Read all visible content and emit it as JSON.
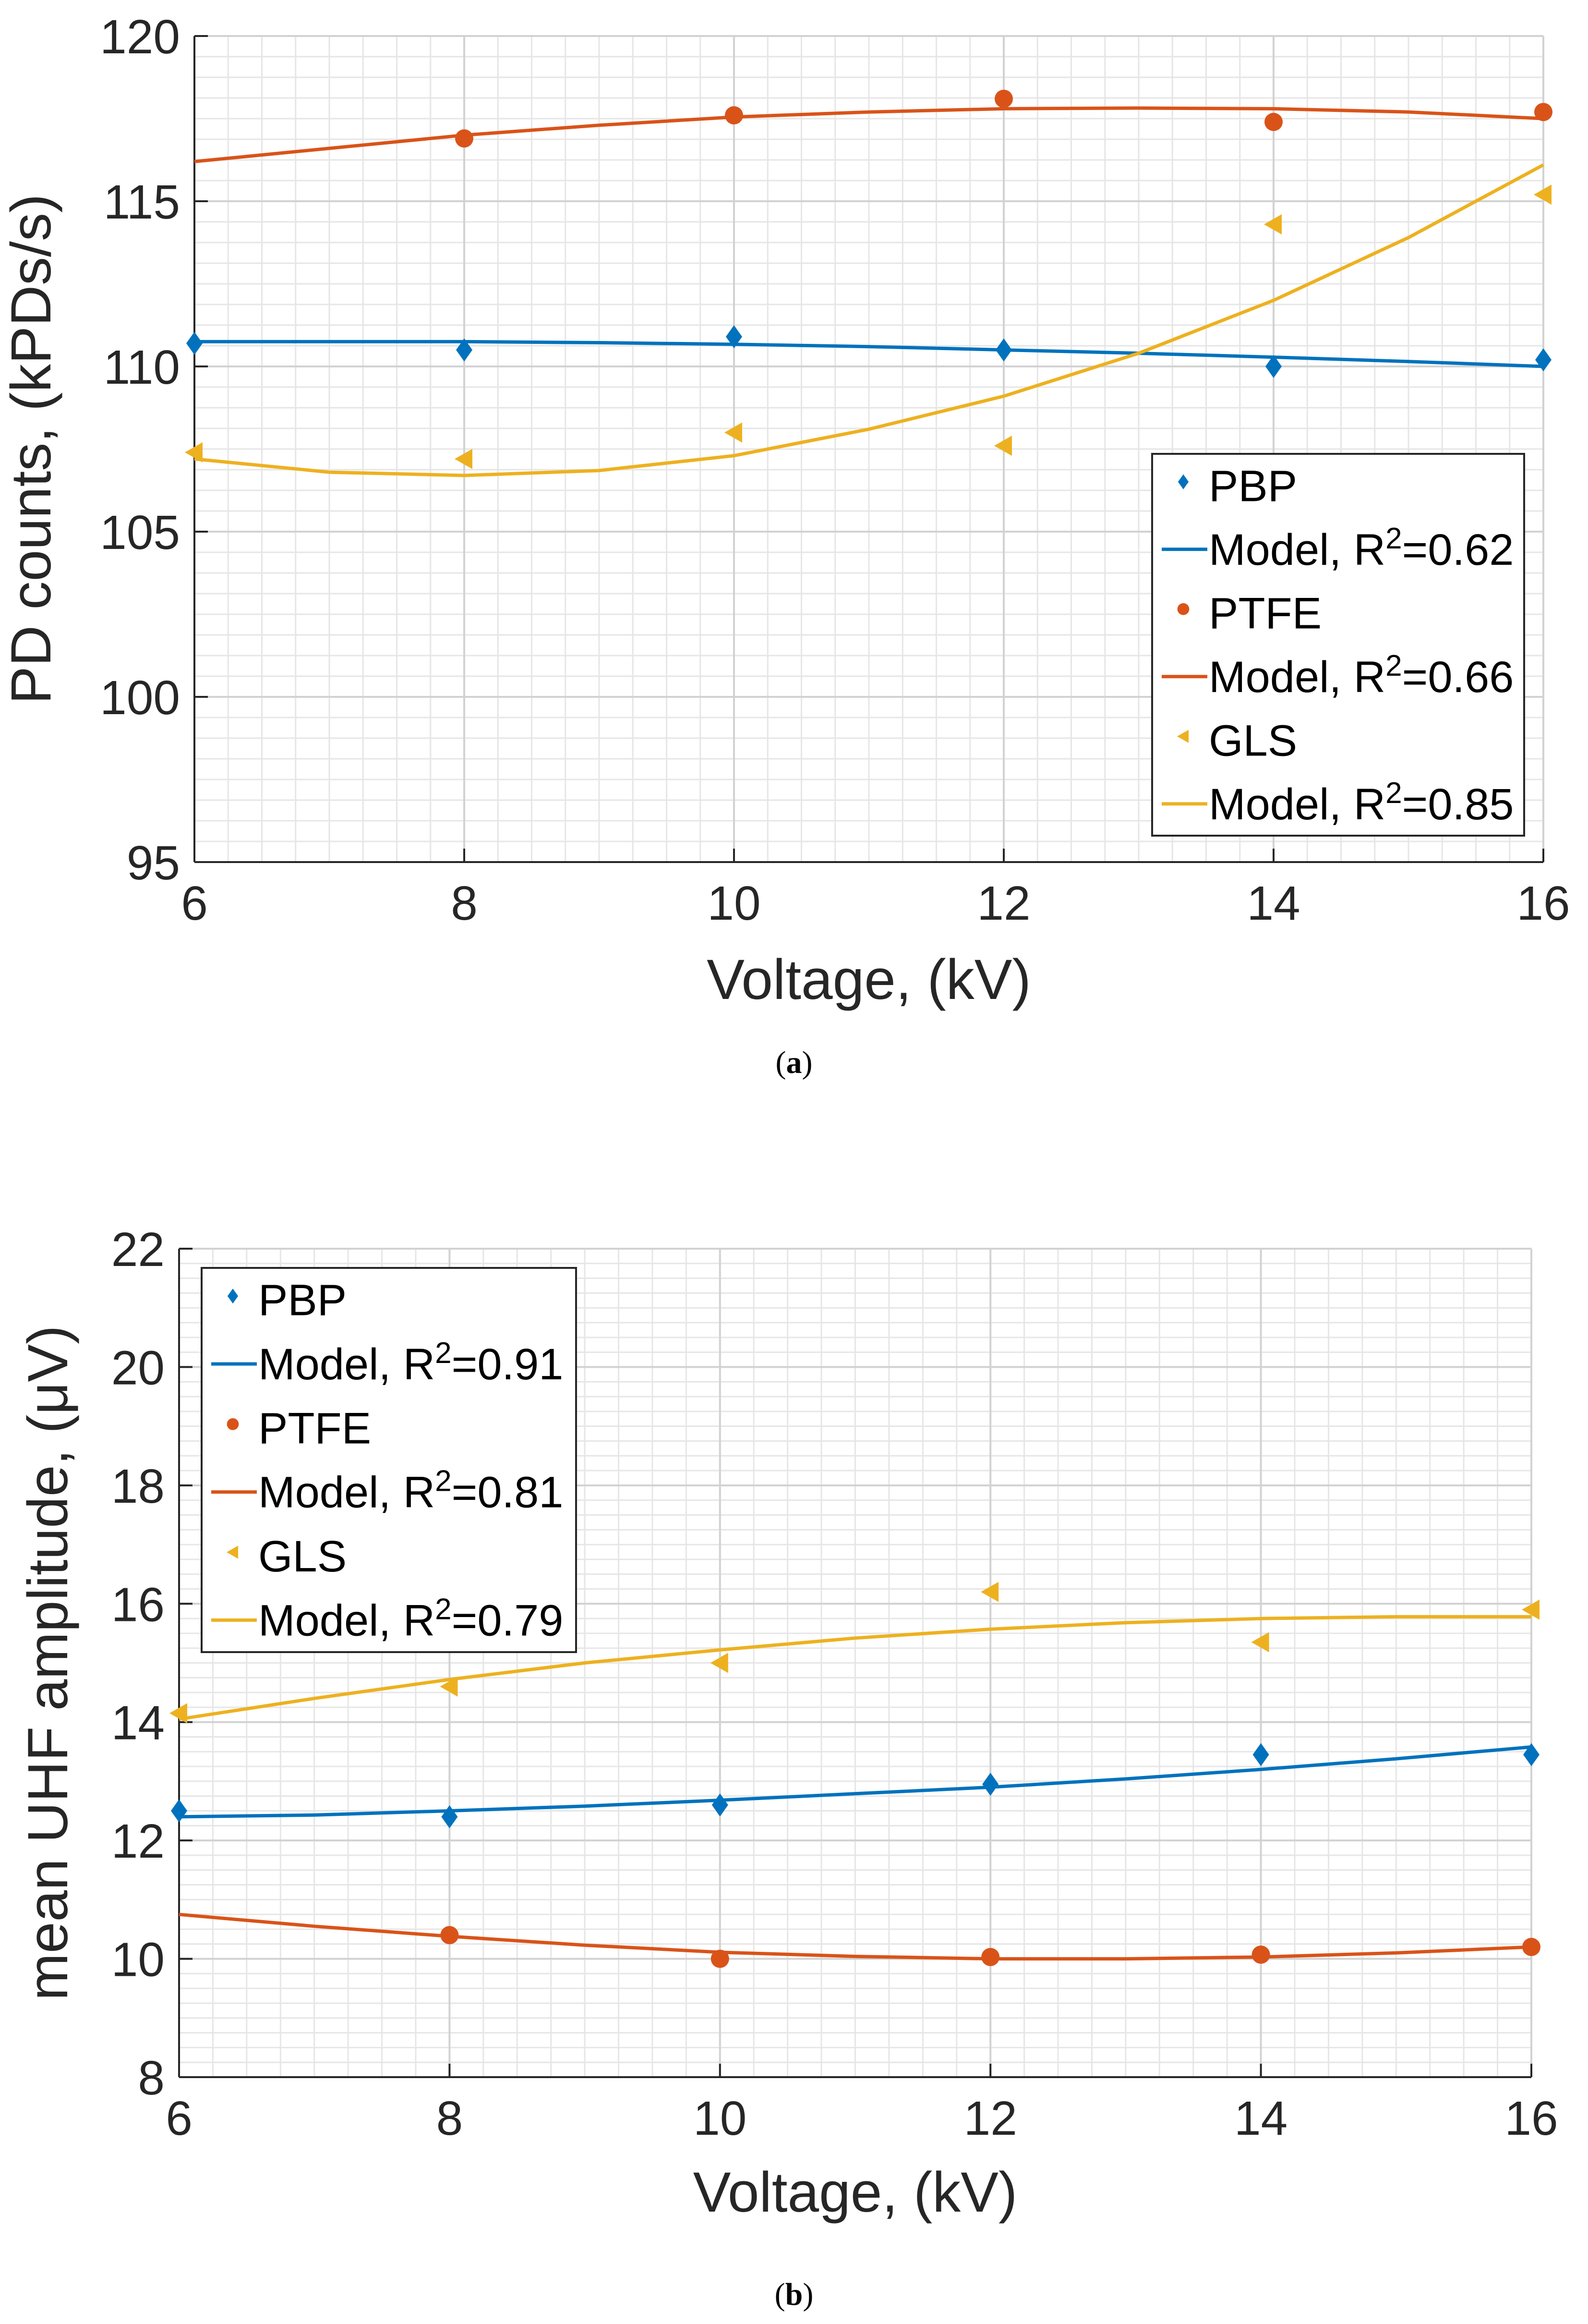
{
  "chart_data": [
    {
      "type": "scatter",
      "panel": "a",
      "caption_letter": "a",
      "title": "",
      "xlabel": "Voltage, (kV)",
      "ylabel": "PD counts, (kPDs/s)",
      "xlim": [
        6,
        16
      ],
      "ylim": [
        95,
        120
      ],
      "xticks": [
        6,
        8,
        10,
        12,
        14,
        16
      ],
      "yticks": [
        95,
        100,
        105,
        110,
        115,
        120
      ],
      "grid": "minor",
      "legend_position": "center-right",
      "series": [
        {
          "name": "PBP",
          "kind": "points",
          "marker": "diamond",
          "color": "#0072BD",
          "x": [
            6,
            8,
            10,
            12,
            14,
            16
          ],
          "y": [
            110.7,
            110.5,
            110.9,
            110.5,
            110.0,
            110.2
          ]
        },
        {
          "name": "Model",
          "r2": "0.62",
          "kind": "curve",
          "color": "#0072BD",
          "x": [
            6,
            7,
            8,
            9,
            10,
            11,
            12,
            13,
            14,
            15,
            16
          ],
          "y": [
            110.75,
            110.75,
            110.75,
            110.72,
            110.67,
            110.6,
            110.5,
            110.4,
            110.28,
            110.15,
            110.0
          ]
        },
        {
          "name": "PTFE",
          "kind": "points",
          "marker": "circle",
          "color": "#D95319",
          "x": [
            8,
            10,
            12,
            14,
            16
          ],
          "y": [
            116.9,
            117.6,
            118.1,
            117.4,
            117.7
          ]
        },
        {
          "name": "Model",
          "r2": "0.66",
          "kind": "curve",
          "color": "#D95319",
          "x": [
            6,
            7,
            8,
            9,
            10,
            11,
            12,
            13,
            14,
            15,
            16
          ],
          "y": [
            116.2,
            116.6,
            117.0,
            117.3,
            117.55,
            117.7,
            117.8,
            117.82,
            117.8,
            117.7,
            117.5
          ]
        },
        {
          "name": "GLS",
          "kind": "points",
          "marker": "triangle-left",
          "color": "#EDB120",
          "x": [
            6,
            8,
            10,
            12,
            14,
            16
          ],
          "y": [
            107.4,
            107.2,
            108.0,
            107.6,
            114.3,
            115.2
          ]
        },
        {
          "name": "Model",
          "r2": "0.85",
          "kind": "curve",
          "color": "#EDB120",
          "x": [
            6,
            7,
            8,
            9,
            10,
            11,
            12,
            13,
            14,
            15,
            16
          ],
          "y": [
            107.2,
            106.8,
            106.7,
            106.85,
            107.3,
            108.1,
            109.1,
            110.4,
            112.0,
            113.9,
            116.1
          ]
        }
      ]
    },
    {
      "type": "scatter",
      "panel": "b",
      "caption_letter": "b",
      "title": "",
      "xlabel": "Voltage, (kV)",
      "ylabel": "mean UHF amplitude, (μV)",
      "xlim": [
        6,
        16
      ],
      "ylim": [
        8,
        22
      ],
      "xticks": [
        6,
        8,
        10,
        12,
        14,
        16
      ],
      "yticks": [
        8,
        10,
        12,
        14,
        16,
        18,
        20,
        22
      ],
      "grid": "minor",
      "legend_position": "top-left",
      "series": [
        {
          "name": "PBP",
          "kind": "points",
          "marker": "diamond",
          "color": "#0072BD",
          "x": [
            6,
            8,
            10,
            12,
            14,
            16
          ],
          "y": [
            12.5,
            12.4,
            12.6,
            12.95,
            13.45,
            13.45
          ]
        },
        {
          "name": "Model",
          "r2": "0.91",
          "kind": "curve",
          "color": "#0072BD",
          "x": [
            6,
            7,
            8,
            9,
            10,
            11,
            12,
            13,
            14,
            15,
            16
          ],
          "y": [
            12.4,
            12.43,
            12.5,
            12.58,
            12.68,
            12.79,
            12.9,
            13.04,
            13.2,
            13.38,
            13.58
          ]
        },
        {
          "name": "PTFE",
          "kind": "points",
          "marker": "circle",
          "color": "#D95319",
          "x": [
            8,
            10,
            12,
            14,
            16
          ],
          "y": [
            10.4,
            10.0,
            10.03,
            10.07,
            10.2
          ]
        },
        {
          "name": "Model",
          "r2": "0.81",
          "kind": "curve",
          "color": "#D95319",
          "x": [
            6,
            7,
            8,
            9,
            10,
            11,
            12,
            13,
            14,
            15,
            16
          ],
          "y": [
            10.75,
            10.55,
            10.38,
            10.23,
            10.11,
            10.04,
            10.0,
            10.0,
            10.03,
            10.1,
            10.2
          ]
        },
        {
          "name": "GLS",
          "kind": "points",
          "marker": "triangle-left",
          "color": "#EDB120",
          "x": [
            6,
            8,
            10,
            12,
            14,
            16
          ],
          "y": [
            14.15,
            14.6,
            15.0,
            16.2,
            15.35,
            15.9
          ]
        },
        {
          "name": "Model",
          "r2": "0.79",
          "kind": "curve",
          "color": "#EDB120",
          "x": [
            6,
            7,
            8,
            9,
            10,
            11,
            12,
            13,
            14,
            15,
            16
          ],
          "y": [
            14.05,
            14.4,
            14.72,
            15.0,
            15.22,
            15.42,
            15.57,
            15.68,
            15.75,
            15.78,
            15.78
          ]
        }
      ]
    }
  ]
}
